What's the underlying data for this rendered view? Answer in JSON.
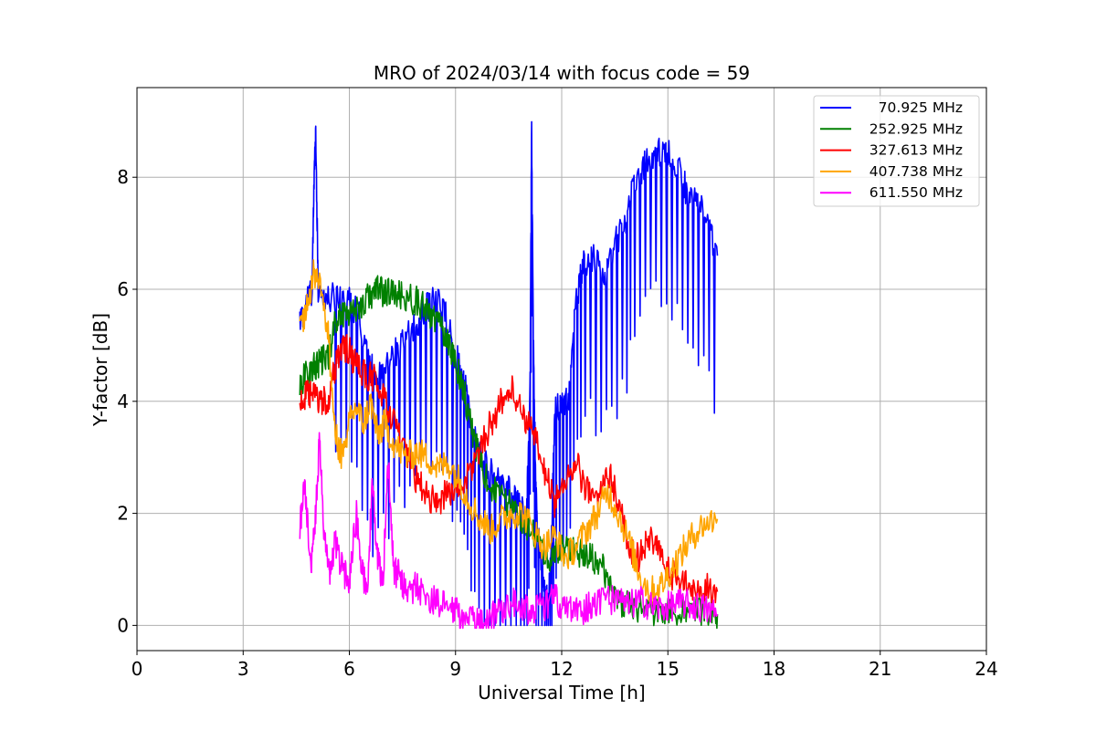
{
  "chart_data": {
    "type": "line",
    "title": "MRO of 2024/03/14 with focus code = 59",
    "xlabel": "Universal Time [h]",
    "ylabel": "Y-factor [dB]",
    "xlim": [
      0,
      24
    ],
    "ylim": [
      -0.45,
      9.6
    ],
    "xticks": [
      0,
      3,
      6,
      9,
      12,
      15,
      18,
      21,
      24
    ],
    "xtick_labels": [
      "0",
      "3",
      "6",
      "9",
      "12",
      "15",
      "18",
      "21",
      "24"
    ],
    "yticks": [
      0,
      2,
      4,
      6,
      8
    ],
    "ytick_labels": [
      "0",
      "2",
      "4",
      "6",
      "8"
    ],
    "grid": true,
    "legend_position": "top-right",
    "series": [
      {
        "name": "70.925 MHz",
        "color": "#0000ff",
        "points": [
          [
            4.6,
            5.4
          ],
          [
            4.8,
            5.8
          ],
          [
            4.95,
            6.0
          ],
          [
            5.0,
            7.9
          ],
          [
            5.05,
            8.8
          ],
          [
            5.12,
            6.0
          ],
          [
            5.4,
            5.8
          ],
          [
            5.7,
            5.9
          ],
          [
            6.0,
            5.8
          ],
          [
            6.3,
            5.5
          ],
          [
            6.6,
            4.6
          ],
          [
            6.9,
            4.4
          ],
          [
            7.2,
            4.8
          ],
          [
            7.5,
            5.0
          ],
          [
            7.8,
            5.3
          ],
          [
            8.1,
            5.6
          ],
          [
            8.4,
            5.8
          ],
          [
            8.7,
            5.6
          ],
          [
            9.0,
            4.8
          ],
          [
            9.2,
            4.6
          ],
          [
            9.4,
            3.8
          ],
          [
            9.6,
            3.2
          ],
          [
            9.9,
            2.8
          ],
          [
            10.2,
            2.6
          ],
          [
            10.5,
            2.4
          ],
          [
            10.8,
            2.2
          ],
          [
            11.0,
            1.8
          ],
          [
            11.1,
            4.0
          ],
          [
            11.15,
            8.8
          ],
          [
            11.22,
            4.0
          ],
          [
            11.3,
            1.8
          ],
          [
            11.5,
            0.8
          ],
          [
            11.6,
            0.4
          ],
          [
            11.7,
            1.2
          ],
          [
            11.8,
            3.8
          ],
          [
            12.0,
            4.0
          ],
          [
            12.2,
            4.0
          ],
          [
            12.4,
            5.8
          ],
          [
            12.6,
            6.4
          ],
          [
            12.9,
            6.6
          ],
          [
            13.2,
            6.2
          ],
          [
            13.5,
            6.8
          ],
          [
            13.8,
            7.2
          ],
          [
            14.0,
            7.8
          ],
          [
            14.3,
            8.2
          ],
          [
            14.6,
            8.4
          ],
          [
            14.9,
            8.5
          ],
          [
            15.2,
            8.3
          ],
          [
            15.5,
            7.8
          ],
          [
            15.8,
            7.6
          ],
          [
            16.1,
            7.2
          ],
          [
            16.4,
            6.6
          ]
        ]
      },
      {
        "name": "252.925 MHz",
        "color": "#008000",
        "points": [
          [
            4.6,
            4.3
          ],
          [
            4.8,
            4.5
          ],
          [
            5.0,
            4.6
          ],
          [
            5.2,
            4.7
          ],
          [
            5.4,
            4.8
          ],
          [
            5.6,
            5.4
          ],
          [
            5.8,
            5.6
          ],
          [
            6.0,
            5.6
          ],
          [
            6.3,
            5.7
          ],
          [
            6.6,
            5.9
          ],
          [
            6.8,
            6.0
          ],
          [
            7.0,
            5.95
          ],
          [
            7.3,
            5.9
          ],
          [
            7.6,
            5.85
          ],
          [
            7.9,
            5.8
          ],
          [
            8.2,
            5.6
          ],
          [
            8.5,
            5.4
          ],
          [
            8.7,
            5.2
          ],
          [
            8.9,
            4.9
          ],
          [
            9.1,
            4.5
          ],
          [
            9.3,
            4.0
          ],
          [
            9.5,
            3.4
          ],
          [
            9.7,
            2.9
          ],
          [
            9.9,
            2.6
          ],
          [
            10.2,
            2.3
          ],
          [
            10.5,
            2.2
          ],
          [
            10.8,
            2.0
          ],
          [
            11.0,
            1.8
          ],
          [
            11.3,
            1.5
          ],
          [
            11.6,
            1.2
          ],
          [
            11.9,
            1.3
          ],
          [
            12.2,
            1.4
          ],
          [
            12.5,
            1.3
          ],
          [
            12.8,
            1.2
          ],
          [
            13.1,
            1.1
          ],
          [
            13.4,
            0.7
          ],
          [
            13.7,
            0.4
          ],
          [
            14.0,
            0.3
          ],
          [
            14.3,
            0.35
          ],
          [
            14.6,
            0.25
          ],
          [
            15.0,
            0.3
          ],
          [
            15.4,
            0.25
          ],
          [
            15.8,
            0.3
          ],
          [
            16.2,
            0.2
          ],
          [
            16.4,
            0.2
          ]
        ]
      },
      {
        "name": "327.613 MHz",
        "color": "#ff0000",
        "points": [
          [
            4.6,
            4.0
          ],
          [
            4.8,
            4.1
          ],
          [
            5.0,
            4.1
          ],
          [
            5.2,
            4.0
          ],
          [
            5.4,
            4.0
          ],
          [
            5.6,
            4.6
          ],
          [
            5.8,
            5.0
          ],
          [
            6.0,
            4.9
          ],
          [
            6.2,
            4.6
          ],
          [
            6.4,
            4.5
          ],
          [
            6.7,
            4.4
          ],
          [
            7.0,
            4.0
          ],
          [
            7.3,
            3.6
          ],
          [
            7.6,
            3.0
          ],
          [
            7.9,
            2.6
          ],
          [
            8.2,
            2.3
          ],
          [
            8.5,
            2.2
          ],
          [
            8.8,
            2.4
          ],
          [
            9.1,
            2.4
          ],
          [
            9.4,
            2.7
          ],
          [
            9.7,
            3.2
          ],
          [
            10.0,
            3.6
          ],
          [
            10.3,
            4.0
          ],
          [
            10.6,
            4.2
          ],
          [
            10.9,
            3.8
          ],
          [
            11.2,
            3.4
          ],
          [
            11.5,
            2.8
          ],
          [
            11.8,
            2.2
          ],
          [
            12.1,
            2.6
          ],
          [
            12.4,
            2.9
          ],
          [
            12.7,
            2.4
          ],
          [
            13.0,
            2.2
          ],
          [
            13.3,
            2.8
          ],
          [
            13.6,
            2.2
          ],
          [
            13.9,
            1.4
          ],
          [
            14.2,
            1.2
          ],
          [
            14.5,
            1.6
          ],
          [
            14.8,
            1.2
          ],
          [
            15.1,
            0.9
          ],
          [
            15.4,
            0.8
          ],
          [
            15.7,
            0.6
          ],
          [
            16.0,
            0.7
          ],
          [
            16.4,
            0.6
          ]
        ]
      },
      {
        "name": "407.738 MHz",
        "color": "#ffa500",
        "points": [
          [
            4.6,
            5.3
          ],
          [
            4.8,
            5.7
          ],
          [
            5.0,
            6.3
          ],
          [
            5.2,
            6.1
          ],
          [
            5.4,
            5.2
          ],
          [
            5.6,
            3.4
          ],
          [
            5.8,
            3.0
          ],
          [
            6.0,
            3.6
          ],
          [
            6.2,
            3.9
          ],
          [
            6.4,
            3.6
          ],
          [
            6.6,
            4.0
          ],
          [
            6.8,
            3.4
          ],
          [
            7.0,
            3.6
          ],
          [
            7.3,
            3.2
          ],
          [
            7.6,
            3.0
          ],
          [
            7.9,
            3.1
          ],
          [
            8.2,
            3.0
          ],
          [
            8.5,
            2.8
          ],
          [
            8.8,
            2.9
          ],
          [
            9.1,
            2.6
          ],
          [
            9.4,
            2.2
          ],
          [
            9.7,
            1.9
          ],
          [
            10.0,
            1.7
          ],
          [
            10.3,
            1.9
          ],
          [
            10.6,
            2.0
          ],
          [
            10.9,
            2.0
          ],
          [
            11.2,
            1.7
          ],
          [
            11.5,
            1.4
          ],
          [
            11.8,
            1.6
          ],
          [
            12.1,
            1.2
          ],
          [
            12.4,
            1.4
          ],
          [
            12.7,
            1.7
          ],
          [
            13.0,
            2.0
          ],
          [
            13.3,
            2.4
          ],
          [
            13.6,
            2.0
          ],
          [
            13.9,
            1.5
          ],
          [
            14.2,
            0.9
          ],
          [
            14.5,
            0.6
          ],
          [
            14.8,
            0.7
          ],
          [
            15.1,
            1.0
          ],
          [
            15.4,
            1.3
          ],
          [
            15.7,
            1.6
          ],
          [
            16.0,
            1.8
          ],
          [
            16.4,
            1.9
          ]
        ]
      },
      {
        "name": "611.550 MHz",
        "color": "#ff00ff",
        "points": [
          [
            4.6,
            1.8
          ],
          [
            4.75,
            2.5
          ],
          [
            4.9,
            1.0
          ],
          [
            5.05,
            2.0
          ],
          [
            5.15,
            3.3
          ],
          [
            5.3,
            1.5
          ],
          [
            5.45,
            0.9
          ],
          [
            5.6,
            1.5
          ],
          [
            5.8,
            1.0
          ],
          [
            6.0,
            0.8
          ],
          [
            6.2,
            2.0
          ],
          [
            6.35,
            1.0
          ],
          [
            6.5,
            0.6
          ],
          [
            6.65,
            2.5
          ],
          [
            6.8,
            1.2
          ],
          [
            6.95,
            0.8
          ],
          [
            7.1,
            3.0
          ],
          [
            7.25,
            1.0
          ],
          [
            7.4,
            0.9
          ],
          [
            7.6,
            0.6
          ],
          [
            7.9,
            0.7
          ],
          [
            8.2,
            0.5
          ],
          [
            8.5,
            0.4
          ],
          [
            8.8,
            0.3
          ],
          [
            9.1,
            0.2
          ],
          [
            9.4,
            0.1
          ],
          [
            9.7,
            0.05
          ],
          [
            10.0,
            0.15
          ],
          [
            10.3,
            0.3
          ],
          [
            10.6,
            0.45
          ],
          [
            10.9,
            0.35
          ],
          [
            11.2,
            0.25
          ],
          [
            11.5,
            0.35
          ],
          [
            11.8,
            0.5
          ],
          [
            12.1,
            0.3
          ],
          [
            12.4,
            0.25
          ],
          [
            12.7,
            0.3
          ],
          [
            13.0,
            0.45
          ],
          [
            13.3,
            0.5
          ],
          [
            13.6,
            0.4
          ],
          [
            13.9,
            0.35
          ],
          [
            14.2,
            0.45
          ],
          [
            14.5,
            0.35
          ],
          [
            14.8,
            0.3
          ],
          [
            15.1,
            0.35
          ],
          [
            15.4,
            0.4
          ],
          [
            15.7,
            0.35
          ],
          [
            16.0,
            0.3
          ],
          [
            16.4,
            0.2
          ]
        ]
      }
    ]
  }
}
